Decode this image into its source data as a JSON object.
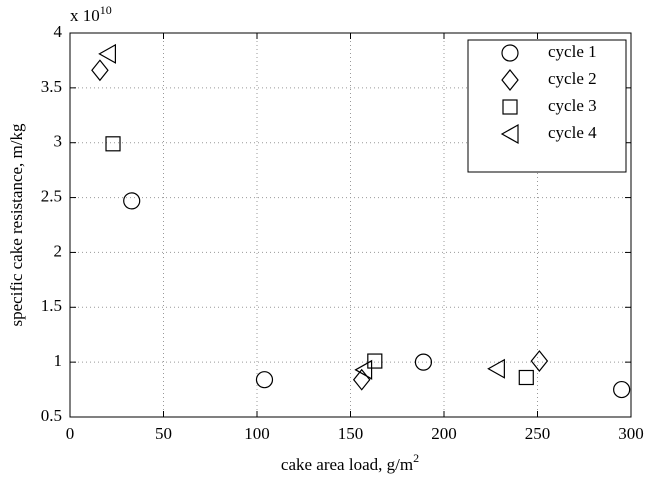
{
  "chart_data": {
    "type": "scatter",
    "ylabel": "specific cake resistance, m/kg",
    "xlabel": "cake area load, g/m",
    "xlabel_superscript": "2",
    "y_multiplier": {
      "base": "x 10",
      "exponent": "10"
    },
    "xlim": [
      0,
      300
    ],
    "xticks": [
      0,
      50,
      100,
      150,
      200,
      250,
      300
    ],
    "ylim": [
      0.5,
      4
    ],
    "yticks": [
      0.5,
      1,
      1.5,
      2,
      2.5,
      3,
      3.5,
      4
    ],
    "grid": true,
    "legend": "upper right",
    "series": [
      {
        "name": "cycle 1",
        "color": "#000000",
        "marker": "circle",
        "x": [
          33,
          104,
          189,
          295
        ],
        "values": [
          2.47,
          0.84,
          1.0,
          0.75
        ]
      },
      {
        "name": "cycle 2",
        "color": "#000000",
        "marker": "diamond",
        "x": [
          16,
          156,
          251
        ],
        "values": [
          3.66,
          0.84,
          1.01
        ]
      },
      {
        "name": "cycle 3",
        "color": "#000000",
        "marker": "square",
        "x": [
          23,
          163,
          244
        ],
        "values": [
          2.99,
          1.01,
          0.86
        ]
      },
      {
        "name": "cycle 4",
        "color": "#000000",
        "marker": "triangle-left",
        "x": [
          20,
          157,
          228
        ],
        "values": [
          3.81,
          0.93,
          0.94
        ]
      }
    ]
  }
}
